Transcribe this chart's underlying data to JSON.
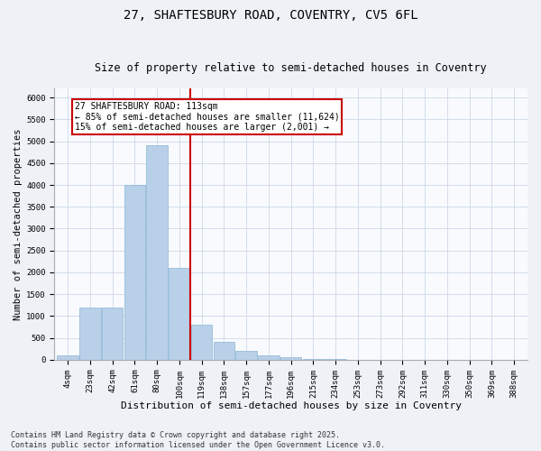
{
  "title1": "27, SHAFTESBURY ROAD, COVENTRY, CV5 6FL",
  "title2": "Size of property relative to semi-detached houses in Coventry",
  "xlabel": "Distribution of semi-detached houses by size in Coventry",
  "ylabel": "Number of semi-detached properties",
  "categories": [
    "4sqm",
    "23sqm",
    "42sqm",
    "61sqm",
    "80sqm",
    "100sqm",
    "119sqm",
    "138sqm",
    "157sqm",
    "177sqm",
    "196sqm",
    "215sqm",
    "234sqm",
    "253sqm",
    "273sqm",
    "292sqm",
    "311sqm",
    "330sqm",
    "350sqm",
    "369sqm",
    "388sqm"
  ],
  "values": [
    100,
    1200,
    1200,
    4000,
    4900,
    2100,
    800,
    400,
    200,
    100,
    50,
    25,
    10,
    5,
    3,
    2,
    1,
    1,
    0,
    0,
    0
  ],
  "bar_color": "#b8d0e8",
  "bar_edgecolor": "#8ab4d4",
  "vline_x": 5.5,
  "vline_color": "#cc0000",
  "annotation_box_text": "27 SHAFTESBURY ROAD: 113sqm\n← 85% of semi-detached houses are smaller (11,624)\n15% of semi-detached houses are larger (2,001) →",
  "ylim": [
    0,
    6200
  ],
  "yticks": [
    0,
    500,
    1000,
    1500,
    2000,
    2500,
    3000,
    3500,
    4000,
    4500,
    5000,
    5500,
    6000
  ],
  "footer1": "Contains HM Land Registry data © Crown copyright and database right 2025.",
  "footer2": "Contains public sector information licensed under the Open Government Licence v3.0.",
  "bg_color": "#eef2f7",
  "plot_bg_color": "#f8fafd",
  "grid_color": "#ccd8e8",
  "title1_fontsize": 10,
  "title2_fontsize": 8.5,
  "xlabel_fontsize": 8,
  "ylabel_fontsize": 7.5,
  "tick_fontsize": 6.5,
  "annotation_fontsize": 7,
  "footer_fontsize": 6
}
